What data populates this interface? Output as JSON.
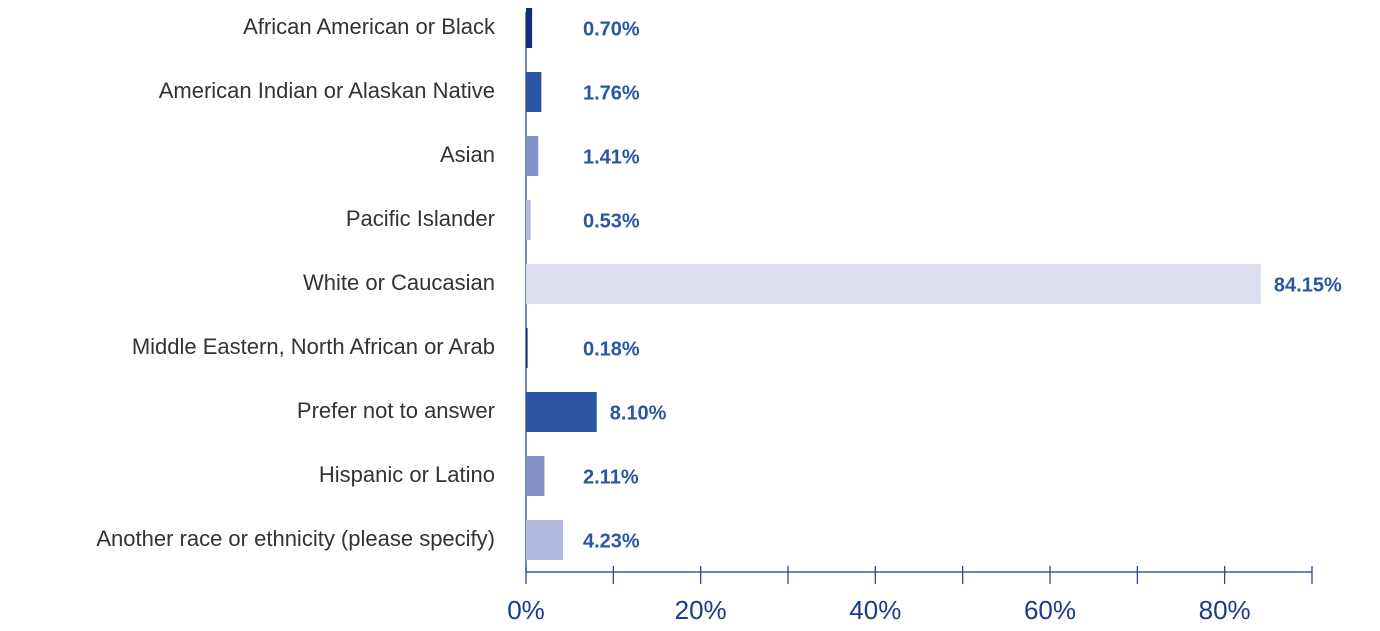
{
  "chart_data": {
    "type": "barh",
    "categories": [
      "African American or Black",
      "American Indian or Alaskan Native",
      "Asian",
      "Pacific Islander",
      "White or Caucasian",
      "Middle Eastern, North African or Arab",
      "Prefer not to answer",
      "Hispanic or Latino",
      "Another race or ethnicity (please specify)"
    ],
    "values": [
      0.7,
      1.76,
      1.41,
      0.53,
      84.15,
      0.18,
      8.1,
      2.11,
      4.23
    ],
    "value_labels": [
      "0.70%",
      "1.76%",
      "1.41%",
      "0.53%",
      "84.15%",
      "0.18%",
      "8.10%",
      "2.11%",
      "4.23%"
    ],
    "colors": [
      "#0f2d7c",
      "#2a56a3",
      "#8490c8",
      "#b3b9de",
      "#dcdef0",
      "#0f2d7c",
      "#2a56a3",
      "#8490c8",
      "#b3b9de"
    ],
    "xlim": [
      0,
      90
    ],
    "xticks": [
      {
        "value": 0,
        "label": "0%"
      },
      {
        "value": 20,
        "label": "20%"
      },
      {
        "value": 40,
        "label": "40%"
      },
      {
        "value": 60,
        "label": "60%"
      },
      {
        "value": 80,
        "label": "80%"
      }
    ],
    "minor_xticks": [
      10,
      30,
      50,
      70,
      90
    ]
  }
}
